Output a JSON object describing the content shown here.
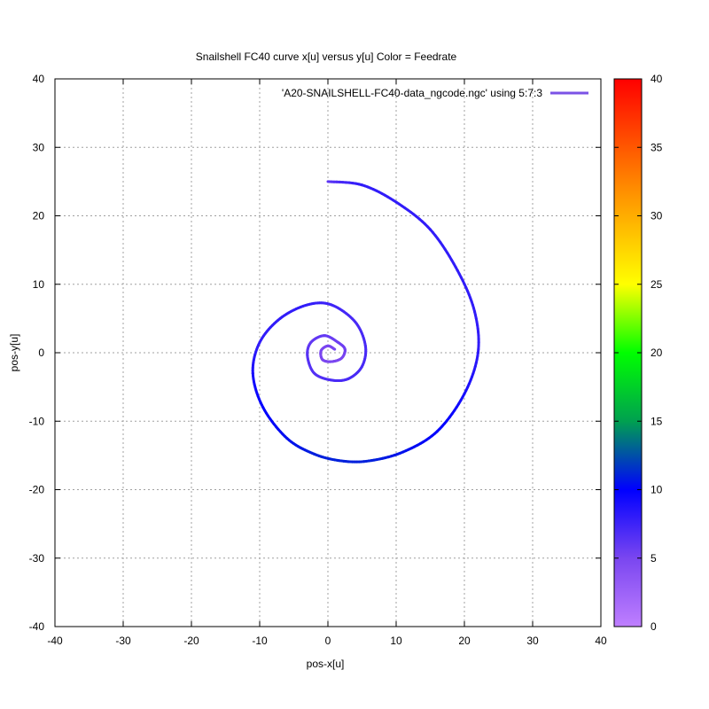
{
  "chart_data": {
    "type": "line",
    "title": "Snailshell FC40 curve x[u] versus y[u] Color = Feedrate",
    "xlabel": "pos-x[u]",
    "ylabel": "pos-y[u]",
    "xlim": [
      -40,
      40
    ],
    "ylim": [
      -40,
      40
    ],
    "x_ticks": [
      "-40",
      "-30",
      "-20",
      "-10",
      "0",
      "10",
      "20",
      "30",
      "40"
    ],
    "y_ticks": [
      "-40",
      "-30",
      "-20",
      "-10",
      "0",
      "10",
      "20",
      "30",
      "40"
    ],
    "grid": true,
    "legend": {
      "position": "top-right",
      "label": "'A20-SNAILSHELL-FC40-data_ngcode.ngc' using 5:7:3",
      "color": "#7b52e6"
    },
    "colorbar": {
      "range": [
        0,
        40
      ],
      "ticks": [
        "0",
        "5",
        "10",
        "15",
        "20",
        "25",
        "30",
        "35",
        "40"
      ]
    },
    "series": [
      {
        "x": [
          0,
          5,
          10,
          15,
          19,
          21.5,
          22,
          20,
          16,
          11,
          6,
          2,
          -2,
          -6,
          -9.5,
          -11,
          -10,
          -7,
          -3,
          0.5,
          4,
          5.5,
          5,
          3,
          0.5,
          -2,
          -3,
          -2.5,
          -0.5,
          1.5,
          2.5,
          2,
          0.5,
          -0.8,
          -1,
          0,
          1
        ],
        "y": [
          25,
          24.5,
          22,
          18,
          12,
          6,
          0,
          -6,
          -11.5,
          -14.5,
          -15.8,
          -15.8,
          -14.8,
          -12.5,
          -8,
          -3,
          1.5,
          5,
          7,
          7,
          4.5,
          1,
          -2,
          -3.8,
          -4,
          -3,
          -0.5,
          1.5,
          2.5,
          1.5,
          0.5,
          -0.8,
          -1.3,
          -1,
          0.3,
          1,
          0.5
        ],
        "feedrate": [
          6,
          8,
          8,
          8,
          8,
          8,
          8,
          9,
          10,
          10.5,
          11,
          11,
          11,
          10.5,
          10,
          9,
          8,
          8,
          8,
          7.5,
          7,
          7,
          7,
          7,
          7,
          6.5,
          6.5,
          6,
          6,
          5.5,
          5.5,
          5,
          5,
          5,
          5,
          5,
          5
        ]
      }
    ]
  }
}
